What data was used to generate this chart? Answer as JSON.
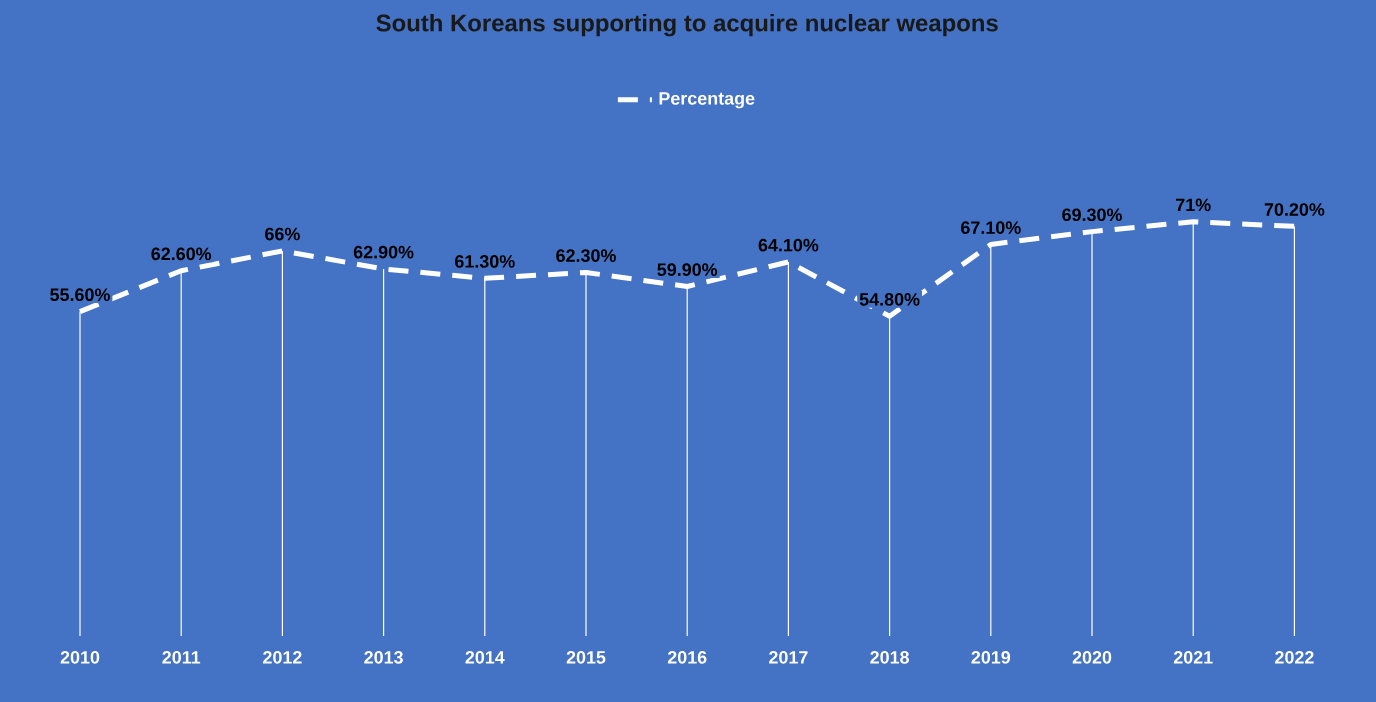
{
  "chart_data": {
    "type": "line",
    "title": "South Koreans supporting to acquire nuclear weapons",
    "categories": [
      "2010",
      "2011",
      "2012",
      "2013",
      "2014",
      "2015",
      "2016",
      "2017",
      "2018",
      "2019",
      "2020",
      "2021",
      "2022"
    ],
    "series": [
      {
        "name": "Percentage",
        "color": "#ffffff",
        "values": [
          55.6,
          62.6,
          66,
          62.9,
          61.3,
          62.3,
          59.9,
          64.1,
          54.8,
          67.1,
          69.3,
          71,
          70.2
        ],
        "value_labels": [
          "55.60%",
          "62.60%",
          "66%",
          "62.90%",
          "61.30%",
          "62.30%",
          "59.90%",
          "64.10%",
          "54.80%",
          "67.10%",
          "69.30%",
          "71%",
          "70.20%"
        ]
      }
    ],
    "tick_labels": "x",
    "grid": "x",
    "legend": "top",
    "line_style": "dashed",
    "marker": "none"
  }
}
